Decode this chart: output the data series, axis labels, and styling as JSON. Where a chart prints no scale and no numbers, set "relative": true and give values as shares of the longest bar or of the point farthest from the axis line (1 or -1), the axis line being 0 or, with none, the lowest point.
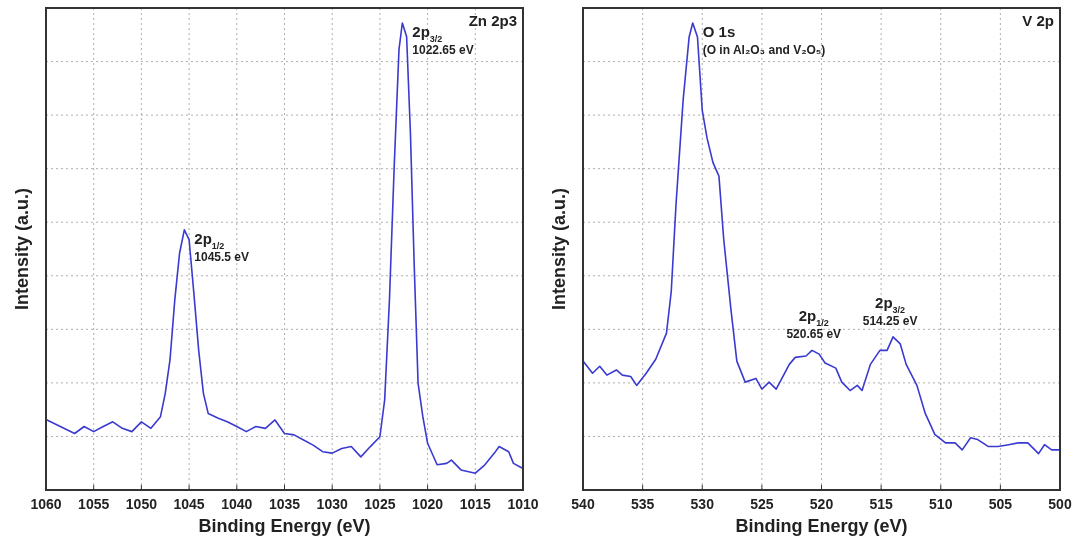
{
  "chart_data": [
    {
      "type": "line",
      "title": "Zn 2p3",
      "xlabel": "Binding Energy (eV)",
      "ylabel": "Intensity (a.u.)",
      "relative": true,
      "grid": true,
      "xlim": [
        1060,
        1010
      ],
      "xticks": [
        1060,
        1055,
        1050,
        1045,
        1040,
        1035,
        1030,
        1025,
        1020,
        1015,
        1010
      ],
      "annotations": [
        {
          "text": "2p$_{1/2}$\n1045.5 eV",
          "x": 1045.5,
          "y": 0.557
        },
        {
          "text": "2p$_{3/2}$\n1022.65 eV",
          "x": 1022.65,
          "y": 1.0
        }
      ],
      "series": [
        {
          "color": "#3a3ad0",
          "x": [
            1060,
            1058.5,
            1057,
            1056,
            1055,
            1054,
            1053,
            1052,
            1051,
            1050,
            1049,
            1048,
            1047.5,
            1047,
            1046.5,
            1046,
            1045.5,
            1045,
            1044.5,
            1044,
            1043.5,
            1043,
            1042,
            1041,
            1040,
            1039,
            1038,
            1037,
            1036,
            1035,
            1034,
            1033,
            1032,
            1031,
            1030,
            1029,
            1028,
            1027,
            1026,
            1025,
            1024.5,
            1024,
            1023.5,
            1023,
            1022.65,
            1022.2,
            1021.8,
            1021.4,
            1021,
            1020.5,
            1020,
            1019,
            1018,
            1017.5,
            1016.5,
            1015,
            1014,
            1013,
            1012.5,
            1011.5,
            1011,
            1010
          ],
          "values": [
            0.151,
            0.136,
            0.121,
            0.136,
            0.125,
            0.136,
            0.146,
            0.132,
            0.125,
            0.146,
            0.132,
            0.157,
            0.207,
            0.279,
            0.407,
            0.507,
            0.557,
            0.536,
            0.421,
            0.3,
            0.207,
            0.164,
            0.154,
            0.146,
            0.136,
            0.125,
            0.136,
            0.132,
            0.15,
            0.121,
            0.118,
            0.107,
            0.096,
            0.082,
            0.079,
            0.089,
            0.093,
            0.071,
            0.093,
            0.114,
            0.193,
            0.407,
            0.693,
            0.943,
            1.0,
            0.971,
            0.764,
            0.479,
            0.229,
            0.157,
            0.1,
            0.054,
            0.057,
            0.064,
            0.043,
            0.036,
            0.054,
            0.079,
            0.093,
            0.082,
            0.057,
            0.046
          ]
        }
      ]
    },
    {
      "type": "line",
      "title": "V 2p",
      "xlabel": "Binding Energy (eV)",
      "ylabel": "Intensity (a.u.)",
      "relative": true,
      "grid": true,
      "xlim": [
        540,
        500
      ],
      "xticks": [
        540,
        535,
        530,
        525,
        520,
        515,
        510,
        505,
        500
      ],
      "annotations": [
        {
          "text": "O 1s\n(O in Al₂O₃ and V₂O₅)",
          "x": 530.8,
          "y": 1.0
        },
        {
          "text": "2p$_{1/2}$\n520.65 eV",
          "x": 520.65,
          "y": 0.299
        },
        {
          "text": "2p$_{3/2}$\n514.25 eV",
          "x": 514.25,
          "y": 0.328
        }
      ],
      "series": [
        {
          "color": "#3a3ad0",
          "x": [
            540,
            539.2,
            538.6,
            538.0,
            537.2,
            536.7,
            536.0,
            535.5,
            534.7,
            533.9,
            533.0,
            532.6,
            532.2,
            531.6,
            531.1,
            530.8,
            530.4,
            530.0,
            529.6,
            529.1,
            528.6,
            528.2,
            527.6,
            527.1,
            526.4,
            525.5,
            525.0,
            524.4,
            523.8,
            522.7,
            522.2,
            521.3,
            520.8,
            520.2,
            519.7,
            518.8,
            518.3,
            517.6,
            517.0,
            516.6,
            515.9,
            515.1,
            514.5,
            514.0,
            513.4,
            512.9,
            512.0,
            511.3,
            510.5,
            509.6,
            508.8,
            508.2,
            507.5,
            506.9,
            506.0,
            505.2,
            504.3,
            503.5,
            502.7,
            501.8,
            501.3,
            500.7,
            500
          ],
          "values": [
            0.276,
            0.25,
            0.265,
            0.246,
            0.257,
            0.246,
            0.243,
            0.224,
            0.25,
            0.28,
            0.336,
            0.425,
            0.612,
            0.836,
            0.97,
            1.0,
            0.97,
            0.813,
            0.754,
            0.701,
            0.672,
            0.537,
            0.388,
            0.276,
            0.231,
            0.239,
            0.216,
            0.231,
            0.216,
            0.269,
            0.284,
            0.287,
            0.299,
            0.291,
            0.272,
            0.261,
            0.231,
            0.213,
            0.224,
            0.213,
            0.269,
            0.299,
            0.299,
            0.328,
            0.313,
            0.269,
            0.224,
            0.164,
            0.119,
            0.101,
            0.101,
            0.086,
            0.112,
            0.108,
            0.093,
            0.093,
            0.097,
            0.101,
            0.101,
            0.078,
            0.097,
            0.086,
            0.086
          ]
        }
      ]
    }
  ]
}
